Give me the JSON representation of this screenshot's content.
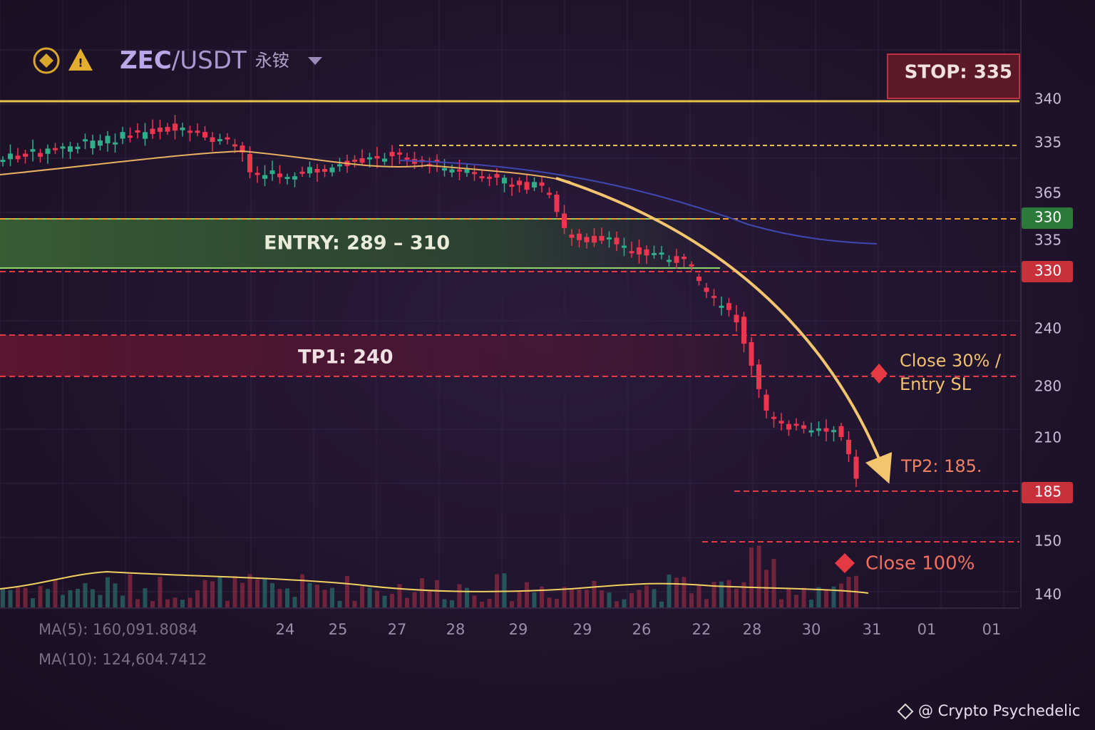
{
  "header": {
    "base": "ZEC",
    "quote": "/USDT",
    "suffix": "永铵"
  },
  "stop_label": "STOP: 335",
  "price_axis": [
    {
      "label": "340"
    },
    {
      "label": "335"
    },
    {
      "label": "365"
    },
    {
      "label": "330",
      "badge": "green"
    },
    {
      "label": "335"
    },
    {
      "label": "330",
      "badge": "red"
    },
    {
      "label": "240"
    },
    {
      "label": "280"
    },
    {
      "label": "210"
    },
    {
      "label": "185",
      "badge": "red"
    },
    {
      "label": "150"
    },
    {
      "label": "140"
    }
  ],
  "annotations": {
    "entry": "ENTRY: 289 – 310",
    "tp1": "TP1: 240",
    "close30": [
      "Close 30% /",
      "Entry SL"
    ],
    "tp2": "TP2: 185.",
    "close100": "Close 100%"
  },
  "date_axis": [
    "24",
    "25",
    "27",
    "28",
    "29",
    "29",
    "26",
    "22",
    "28",
    "30",
    "31",
    "01",
    "01"
  ],
  "indicators": [
    "MA(5): 160,091.8084",
    "MA(10): 124,604.7412"
  ],
  "watermark": "@ Crypto Psychedelic"
}
